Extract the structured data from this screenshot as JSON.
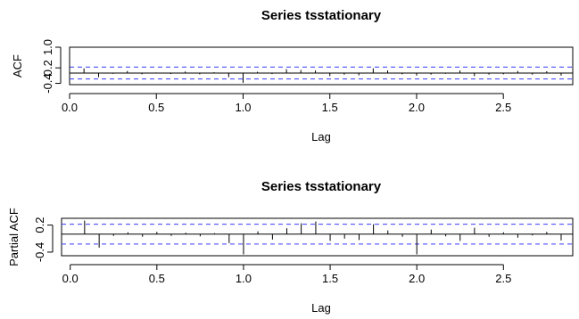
{
  "chart_data": [
    {
      "type": "bar",
      "title": "Series  tsstationary",
      "xlabel": "Lag",
      "ylabel": "ACF",
      "xlim": [
        0,
        2.9
      ],
      "ylim": [
        -0.45,
        1.0
      ],
      "x_ticks": [
        "0.0",
        "0.5",
        "1.0",
        "1.5",
        "2.0",
        "2.5"
      ],
      "y_ticks": [
        "-0.4",
        "0.2",
        "1.0"
      ],
      "confidence_band": 0.23,
      "colors": {
        "bars": "#000000",
        "band": "#3a3aff",
        "zero_line": "#000000"
      },
      "lags": [
        0.0,
        0.083,
        0.167,
        0.25,
        0.333,
        0.417,
        0.5,
        0.583,
        0.667,
        0.75,
        0.833,
        0.917,
        1.0,
        1.083,
        1.167,
        1.25,
        1.333,
        1.417,
        1.5,
        1.583,
        1.667,
        1.75,
        1.833,
        1.917,
        2.0,
        2.083,
        2.167,
        2.25,
        2.333,
        2.417,
        2.5,
        2.583,
        2.667,
        2.75,
        2.833
      ],
      "values": [
        1.0,
        0.18,
        -0.16,
        -0.03,
        0.08,
        -0.05,
        0.02,
        -0.04,
        0.06,
        -0.05,
        0.03,
        -0.16,
        -0.38,
        0.05,
        -0.04,
        0.15,
        0.12,
        0.1,
        -0.12,
        -0.06,
        -0.09,
        0.18,
        0.1,
        -0.05,
        -0.1,
        -0.06,
        -0.03,
        0.1,
        -0.12,
        -0.06,
        -0.05,
        0.08,
        -0.06,
        0.07,
        -0.1
      ]
    },
    {
      "type": "bar",
      "title": "Series  tsstationary",
      "xlabel": "Lag",
      "ylabel": "Partial ACF",
      "xlim": [
        -0.05,
        2.9
      ],
      "ylim": [
        -0.48,
        0.35
      ],
      "x_ticks": [
        "0.0",
        "0.5",
        "1.0",
        "1.5",
        "2.0",
        "2.5"
      ],
      "y_ticks": [
        "-0.4",
        "0.2"
      ],
      "confidence_band": 0.22,
      "colors": {
        "bars": "#000000",
        "band": "#3a3aff",
        "zero_line": "#000000"
      },
      "lags": [
        0.083,
        0.167,
        0.25,
        0.333,
        0.417,
        0.5,
        0.583,
        0.667,
        0.75,
        0.833,
        0.917,
        1.0,
        1.083,
        1.167,
        1.25,
        1.333,
        1.417,
        1.5,
        1.583,
        1.667,
        1.75,
        1.833,
        1.917,
        2.0,
        2.083,
        2.167,
        2.25,
        2.333,
        2.417,
        2.5,
        2.583,
        2.667,
        2.75,
        2.833
      ],
      "values": [
        0.3,
        -0.3,
        -0.04,
        0.04,
        -0.06,
        0.05,
        -0.04,
        0.03,
        -0.05,
        0.02,
        -0.2,
        -0.45,
        0.06,
        -0.12,
        0.13,
        0.24,
        0.28,
        -0.15,
        -0.1,
        -0.13,
        0.22,
        0.08,
        -0.06,
        -0.45,
        0.1,
        -0.05,
        -0.15,
        0.14,
        -0.06,
        0.04,
        -0.08,
        -0.03,
        0.05,
        -0.14
      ]
    }
  ]
}
